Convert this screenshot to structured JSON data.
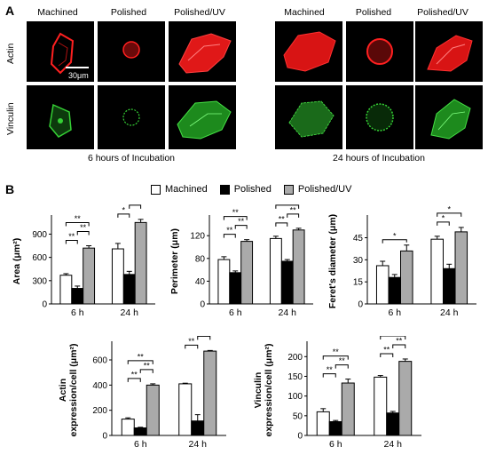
{
  "panels": {
    "a_label": "A",
    "b_label": "B"
  },
  "micrographs": {
    "columns": [
      "Machined",
      "Polished",
      "Polished/UV"
    ],
    "rows": [
      "Actin",
      "Vinculin"
    ],
    "groups": [
      "6 hours of Incubation",
      "24 hours of Incubation"
    ],
    "scale_bar": "30μm",
    "colors": {
      "actin": "#ff2020",
      "vinculin": "#35d035"
    }
  },
  "legend": {
    "items": [
      {
        "label": "Machined",
        "color": "#ffffff"
      },
      {
        "label": "Polished",
        "color": "#000000"
      },
      {
        "label": "Polished/UV",
        "color": "#aaaaaa"
      }
    ]
  },
  "chart_data": [
    {
      "type": "bar",
      "ylabel": "Area (μm²)",
      "categories": [
        "6 h",
        "24 h"
      ],
      "ticks": [
        "0",
        "300",
        "600",
        "900"
      ],
      "ylim": [
        0,
        1100
      ],
      "series": [
        {
          "name": "Machined",
          "values": [
            370,
            710
          ],
          "errors": [
            20,
            70
          ]
        },
        {
          "name": "Polished",
          "values": [
            200,
            380
          ],
          "errors": [
            30,
            40
          ]
        },
        {
          "name": "Polished/UV",
          "values": [
            720,
            1050
          ],
          "errors": [
            30,
            40
          ]
        }
      ],
      "annotations": [
        [
          "**",
          "**",
          "**"
        ],
        [
          "*",
          "**",
          "*"
        ]
      ]
    },
    {
      "type": "bar",
      "ylabel": "Perimeter (μm)",
      "categories": [
        "6 h",
        "24 h"
      ],
      "ticks": [
        "0",
        "40",
        "80",
        "120"
      ],
      "ylim": [
        0,
        150
      ],
      "series": [
        {
          "name": "Machined",
          "values": [
            78,
            115
          ],
          "errors": [
            5,
            4
          ]
        },
        {
          "name": "Polished",
          "values": [
            55,
            75
          ],
          "errors": [
            3,
            3
          ]
        },
        {
          "name": "Polished/UV",
          "values": [
            110,
            130
          ],
          "errors": [
            3,
            3
          ]
        }
      ],
      "annotations": [
        [
          "**",
          "**",
          "**"
        ],
        [
          "**",
          "**",
          "*"
        ]
      ]
    },
    {
      "type": "bar",
      "ylabel": "Feret's diameter (μm)",
      "categories": [
        "6 h",
        "24 h"
      ],
      "ticks": [
        "0",
        "15",
        "30",
        "45"
      ],
      "ylim": [
        0,
        58
      ],
      "series": [
        {
          "name": "Machined",
          "values": [
            26,
            44
          ],
          "errors": [
            3,
            2
          ]
        },
        {
          "name": "Polished",
          "values": [
            18,
            24
          ],
          "errors": [
            2,
            3
          ]
        },
        {
          "name": "Polished/UV",
          "values": [
            36,
            49
          ],
          "errors": [
            4,
            3
          ]
        }
      ],
      "annotations": [
        [
          "*"
        ],
        [
          "*",
          "*"
        ]
      ]
    },
    {
      "type": "bar",
      "ylabel": "Actin expression/cell (μm²)",
      "categories": [
        "6 h",
        "24 h"
      ],
      "ticks": [
        "0",
        "200",
        "400",
        "600"
      ],
      "ylim": [
        0,
        720
      ],
      "series": [
        {
          "name": "Machined",
          "values": [
            130,
            410
          ],
          "errors": [
            10,
            5
          ]
        },
        {
          "name": "Polished",
          "values": [
            60,
            115
          ],
          "errors": [
            5,
            50
          ]
        },
        {
          "name": "Polished/UV",
          "values": [
            400,
            670
          ],
          "errors": [
            10,
            5
          ]
        }
      ],
      "annotations": [
        [
          "**",
          "**",
          "**"
        ],
        [
          "**",
          "**",
          "**"
        ]
      ]
    },
    {
      "type": "bar",
      "ylabel": "Vinculin expression/cell (μm²)",
      "categories": [
        "6 h",
        "24 h"
      ],
      "ticks": [
        "0",
        "50",
        "100",
        "150",
        "200"
      ],
      "ylim": [
        0,
        230
      ],
      "series": [
        {
          "name": "Machined",
          "values": [
            60,
            148
          ],
          "errors": [
            8,
            4
          ]
        },
        {
          "name": "Polished",
          "values": [
            35,
            57
          ],
          "errors": [
            3,
            4
          ]
        },
        {
          "name": "Polished/UV",
          "values": [
            133,
            188
          ],
          "errors": [
            10,
            6
          ]
        }
      ],
      "annotations": [
        [
          "**",
          "**",
          "**"
        ],
        [
          "**",
          "**",
          "**"
        ]
      ]
    }
  ]
}
